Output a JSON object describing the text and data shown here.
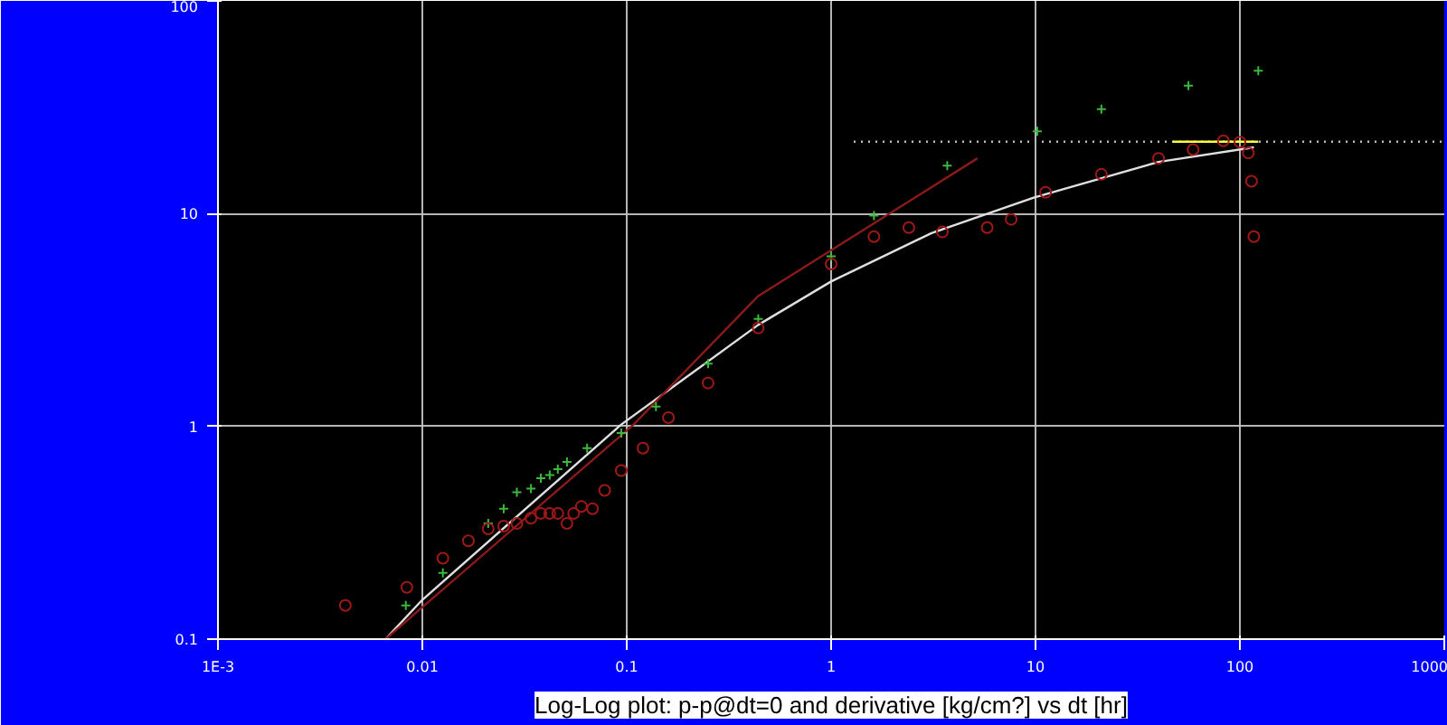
{
  "chart_data": {
    "type": "scatter",
    "title": "Log-Log plot: p-p@dt=0 and derivative [kg/cm?] vs dt [hr]",
    "log": "xy",
    "grid": true,
    "xlim": [
      0.001,
      1000
    ],
    "ylim": [
      0.1,
      100
    ],
    "xticks": [
      {
        "value": 0.001,
        "label": "1E-3"
      },
      0.01,
      0.1,
      1,
      10,
      100,
      {
        "value": 1000,
        "label": "1000"
      }
    ],
    "yticks": [
      0.1,
      1,
      10,
      100
    ],
    "series": [
      {
        "type": "line",
        "color": "#e0e0e0",
        "line_style": "solid",
        "marker": "none",
        "x": [
          0.0066,
          0.01,
          0.094,
          0.44,
          1.0,
          3.1,
          9.8,
          40,
          117
        ],
        "values": [
          0.1,
          0.153,
          1.02,
          3.0,
          4.8,
          8.1,
          11.9,
          17.5,
          20.5
        ]
      },
      {
        "type": "line",
        "color": "#8b1a1a",
        "line_style": "solid",
        "marker": "none",
        "x": [
          0.0066,
          0.108,
          0.44,
          5.2
        ],
        "values": [
          0.1,
          1.02,
          4.1,
          18.2
        ]
      },
      {
        "type": "line",
        "color": "#bbbbbb",
        "line_style": "dotted",
        "marker": "none",
        "x": [
          1.29,
          1000
        ],
        "values": [
          21.8,
          21.8
        ]
      },
      {
        "type": "line",
        "color": "#ffff40",
        "line_style": "solid",
        "marker": "none",
        "x": [
          47,
          123
        ],
        "values": [
          21.8,
          21.8
        ]
      },
      {
        "color": "#3cb93c",
        "marker": "cross",
        "x": [
          0.0083,
          0.0126,
          0.021,
          0.025,
          0.029,
          0.034,
          0.038,
          0.042,
          0.046,
          0.051,
          0.064,
          0.094,
          0.139,
          0.25,
          0.44,
          1.0,
          1.62,
          3.7,
          10.2,
          21,
          56,
          123
        ],
        "values": [
          0.144,
          0.205,
          0.35,
          0.41,
          0.49,
          0.51,
          0.57,
          0.59,
          0.63,
          0.68,
          0.79,
          0.93,
          1.24,
          1.97,
          3.2,
          6.3,
          9.8,
          16.8,
          24.4,
          31,
          40,
          47
        ]
      },
      {
        "color": "#a01818",
        "marker": "circle",
        "x": [
          0.0042,
          0.0084,
          0.0126,
          0.0168,
          0.021,
          0.025,
          0.029,
          0.034,
          0.038,
          0.042,
          0.046,
          0.051,
          0.055,
          0.06,
          0.068,
          0.078,
          0.094,
          0.12,
          0.16,
          0.25,
          0.44,
          1.0,
          1.62,
          2.4,
          3.5,
          5.8,
          7.6,
          11.2,
          21,
          40,
          59,
          83,
          100,
          110,
          114,
          117
        ],
        "values": [
          0.144,
          0.175,
          0.24,
          0.29,
          0.33,
          0.34,
          0.35,
          0.37,
          0.39,
          0.39,
          0.39,
          0.35,
          0.39,
          0.42,
          0.41,
          0.5,
          0.62,
          0.79,
          1.1,
          1.6,
          2.9,
          5.8,
          7.8,
          8.6,
          8.2,
          8.6,
          9.4,
          12.6,
          15.3,
          18.2,
          20,
          22.0,
          21.7,
          19.3,
          14.2,
          7.8
        ]
      }
    ]
  }
}
